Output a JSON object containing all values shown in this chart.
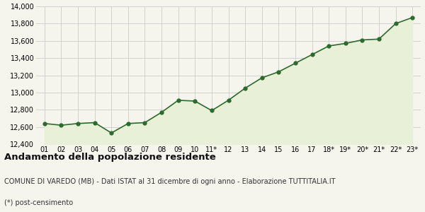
{
  "x_labels": [
    "01",
    "02",
    "03",
    "04",
    "05",
    "06",
    "07",
    "08",
    "09",
    "10",
    "11*",
    "12",
    "13",
    "14",
    "15",
    "16",
    "17",
    "18*",
    "19*",
    "20*",
    "21*",
    "22*",
    "23*"
  ],
  "values": [
    12640,
    12620,
    12640,
    12650,
    12530,
    12640,
    12650,
    12770,
    12910,
    12900,
    12790,
    12910,
    13050,
    13170,
    13240,
    13340,
    13440,
    13540,
    13570,
    13610,
    13620,
    13800,
    13870
  ],
  "line_color": "#2d6a2d",
  "fill_color": "#e8f0d8",
  "bg_color": "#f5f5ee",
  "grid_color": "#cccccc",
  "ylim": [
    12400,
    14000
  ],
  "yticks": [
    12400,
    12600,
    12800,
    13000,
    13200,
    13400,
    13600,
    13800,
    14000
  ],
  "title": "Andamento della popolazione residente",
  "subtitle": "COMUNE DI VAREDO (MB) - Dati ISTAT al 31 dicembre di ogni anno - Elaborazione TUTTITALIA.IT",
  "footnote": "(*) post-censimento",
  "title_fontsize": 9.5,
  "subtitle_fontsize": 7,
  "footnote_fontsize": 7,
  "tick_fontsize": 7
}
